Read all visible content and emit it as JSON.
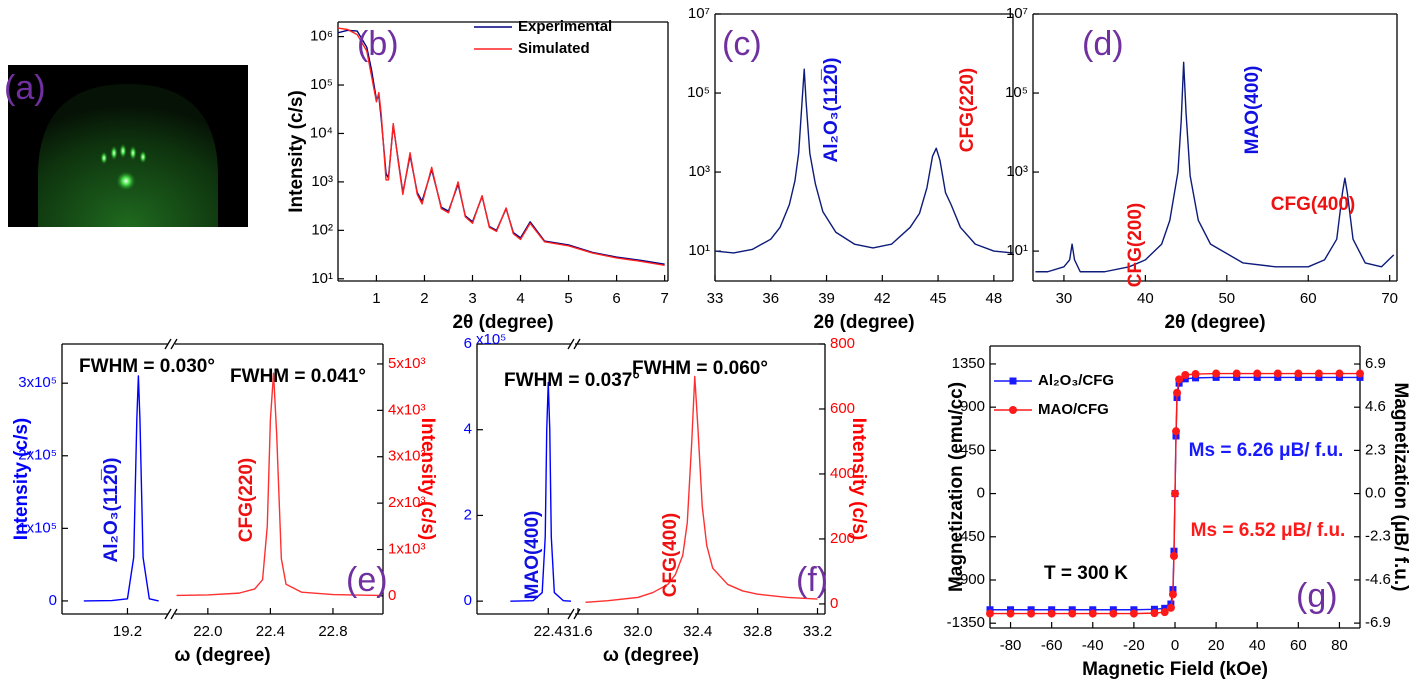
{
  "image_panel": {
    "label": "(a)"
  },
  "chart_data": [
    {
      "type": "line",
      "panel_label": "(b)",
      "xlabel": "2θ (degree)",
      "ylabel": "Intensity (c/s)",
      "ylog": true,
      "xlim": [
        0.2,
        7.07
      ],
      "xticks": [
        1,
        2,
        3,
        4,
        5,
        6,
        7
      ],
      "ylim": [
        9,
        2000000
      ],
      "yticks": [
        {
          "value": 10,
          "label": "10¹"
        },
        {
          "value": 100,
          "label": "10²"
        },
        {
          "value": 1000,
          "label": "10³"
        },
        {
          "value": 10000,
          "label": "10⁴"
        },
        {
          "value": 100000,
          "label": "10⁵"
        },
        {
          "value": 1000000,
          "label": "10⁶"
        }
      ],
      "legend": "upper right",
      "x": [
        0.2,
        0.4,
        0.6,
        0.8,
        0.9,
        1.0,
        1.05,
        1.1,
        1.2,
        1.25,
        1.35,
        1.45,
        1.55,
        1.7,
        1.85,
        1.95,
        2.15,
        2.35,
        2.5,
        2.7,
        2.85,
        3.0,
        3.2,
        3.35,
        3.5,
        3.7,
        3.85,
        4.0,
        4.2,
        4.5,
        5.0,
        5.5,
        6.0,
        6.5,
        7.0
      ],
      "series": [
        {
          "name": "Experimental",
          "color": "#000080",
          "values": [
            1200000,
            1350000,
            1300000,
            600000,
            200000,
            50000,
            60000,
            20000,
            1500,
            1200,
            15000,
            3000,
            600,
            3500,
            600,
            400,
            1800,
            300,
            250,
            900,
            200,
            150,
            500,
            120,
            100,
            280,
            90,
            70,
            150,
            60,
            50,
            35,
            28,
            24,
            20
          ]
        },
        {
          "name": "Simulated",
          "color": "#ff2020",
          "values": [
            1500000,
            1400000,
            1100000,
            500000,
            150000,
            45000,
            70000,
            25000,
            1100,
            1100,
            16000,
            2800,
            550,
            4000,
            550,
            350,
            2000,
            280,
            230,
            1000,
            190,
            140,
            520,
            115,
            95,
            290,
            85,
            65,
            140,
            58,
            48,
            34,
            27,
            23,
            19
          ]
        }
      ]
    },
    {
      "type": "line",
      "panel_label": "(c)",
      "xlabel": "2θ (degree)",
      "ylog": true,
      "xlim": [
        33,
        49.03
      ],
      "xticks": [
        33,
        36,
        39,
        42,
        45,
        48
      ],
      "ylim": [
        1.75,
        10000000
      ],
      "yticks": [
        {
          "value": 10,
          "label": "10¹"
        },
        {
          "value": 1000,
          "label": "10³"
        },
        {
          "value": 100000,
          "label": "10⁵"
        },
        {
          "value": 10000000,
          "label": "10⁷"
        }
      ],
      "x": [
        33,
        34,
        35,
        36,
        36.5,
        37,
        37.3,
        37.5,
        37.7,
        37.8,
        37.9,
        38.1,
        38.4,
        38.8,
        39.5,
        40.5,
        41.5,
        42.5,
        43.5,
        44,
        44.4,
        44.7,
        44.9,
        45.1,
        45.4,
        45.7,
        46.2,
        47,
        48,
        49
      ],
      "series": [
        {
          "color": "#0d1b7a",
          "values": [
            10,
            9,
            11,
            20,
            40,
            150,
            600,
            3000,
            80000,
            400000,
            60000,
            3000,
            500,
            100,
            30,
            15,
            12,
            15,
            40,
            90,
            400,
            2500,
            4000,
            2000,
            300,
            150,
            40,
            15,
            10,
            9
          ]
        }
      ],
      "annotations": [
        {
          "text": "Al₂O₃(112̅0)",
          "color": "#1010e0"
        },
        {
          "text": "CFG(220)",
          "color": "#ee1111"
        }
      ]
    },
    {
      "type": "line",
      "panel_label": "(d)",
      "xlabel": "2θ (degree)",
      "ylog": true,
      "xlim": [
        26.2,
        70.9
      ],
      "xticks": [
        30,
        40,
        50,
        60,
        70
      ],
      "ylim": [
        1.75,
        10000000
      ],
      "yticks": [
        {
          "value": 10,
          "label": "10¹"
        },
        {
          "value": 1000,
          "label": "10³"
        },
        {
          "value": 100000,
          "label": "10⁵"
        },
        {
          "value": 10000000,
          "label": "10⁷"
        }
      ],
      "x": [
        26.5,
        28,
        30,
        30.7,
        31,
        31.3,
        32,
        35,
        38,
        40,
        42,
        43,
        44,
        44.4,
        44.7,
        45,
        45.5,
        46.5,
        48,
        52,
        56,
        60,
        62,
        63.5,
        64.2,
        64.5,
        64.8,
        65.5,
        67,
        69,
        70.5
      ],
      "series": [
        {
          "color": "#0d1b7a",
          "values": [
            3,
            3,
            4,
            6,
            15,
            6,
            3,
            3,
            4,
            6,
            15,
            60,
            1000,
            20000,
            600000,
            30000,
            800,
            60,
            15,
            5,
            4,
            4,
            6,
            20,
            300,
            700,
            300,
            20,
            5,
            4,
            8
          ]
        }
      ],
      "annotations": [
        {
          "text": "CFG(200)",
          "color": "#ee1111"
        },
        {
          "text": "MAO(400)",
          "color": "#1010e0"
        },
        {
          "text": "CFG(400)",
          "color": "#ee1111"
        }
      ]
    },
    {
      "type": "broken_line",
      "panel_label": "(e)",
      "xlabel": "ω (degree)",
      "ylabel": "Intensity (c/s)",
      "y2label": "Intensity (c/s)",
      "ycolor": "#0000ff",
      "y2color": "#ff0000",
      "segments": [
        {
          "xlim": [
            18.78,
            19.46
          ],
          "xticks": [
            19.2
          ]
        },
        {
          "xlim": [
            21.79,
            23.12
          ],
          "xticks": [
            {
              "value": 22,
              "label": "22.0"
            },
            22.4,
            22.8
          ]
        }
      ],
      "ylim": [
        -18000,
        354000
      ],
      "yticks": [
        0,
        {
          "value": 100000,
          "label": "1x10⁵"
        },
        {
          "value": 200000,
          "label": "2x10⁵"
        },
        {
          "value": 300000,
          "label": "3x10⁵"
        }
      ],
      "y2lim": [
        -390,
        5430
      ],
      "y2ticks": [
        0,
        {
          "value": 1000,
          "label": "1x10³"
        },
        {
          "value": 2000,
          "label": "2x10³"
        },
        {
          "value": 3000,
          "label": "3x10³"
        },
        {
          "value": 4000,
          "label": "4x10³"
        },
        {
          "value": 5000,
          "label": "5x10³"
        }
      ],
      "series": [
        {
          "color": "#0000ff",
          "segment": 0,
          "x": [
            18.92,
            19.1,
            19.2,
            19.24,
            19.26,
            19.27,
            19.28,
            19.3,
            19.34,
            19.4
          ],
          "values": [
            0,
            500,
            3000,
            60000,
            250000,
            310000,
            250000,
            60000,
            3000,
            0
          ]
        },
        {
          "color": "#ff3030",
          "segment": 1,
          "axis": "y2",
          "x": [
            21.8,
            22.0,
            22.2,
            22.3,
            22.35,
            22.38,
            22.4,
            22.42,
            22.44,
            22.47,
            22.5,
            22.6,
            22.8,
            23.0,
            23.1
          ],
          "values": [
            10,
            20,
            60,
            150,
            350,
            1500,
            3800,
            4800,
            3500,
            800,
            250,
            80,
            30,
            15,
            10
          ]
        }
      ],
      "annotations": [
        {
          "text": "FWHM = 0.030°",
          "color": "#000000"
        },
        {
          "text": "FWHM = 0.041°",
          "color": "#000000"
        },
        {
          "text": "Al₂O₃(112̅0)",
          "color": "#1010e0"
        },
        {
          "text": "CFG(220)",
          "color": "#ee1111"
        }
      ]
    },
    {
      "type": "broken_line",
      "panel_label": "(f)",
      "xlabel": "ω (degree)",
      "y2label": "Intensity (c/s)",
      "ycolor": "#0000ff",
      "y2color": "#ff0000",
      "y_multiplier": "x10⁵",
      "segments": [
        {
          "xlim": [
            21.93,
            22.55
          ],
          "xticks": [
            22.4
          ]
        },
        {
          "xlim": [
            31.58,
            33.25
          ],
          "xticks": [
            31.6,
            {
              "value": 32,
              "label": "32.0"
            },
            32.4,
            32.8,
            33.2
          ]
        }
      ],
      "ylim": [
        -0.3,
        6
      ],
      "yticks": [
        0,
        2,
        4,
        6
      ],
      "y2lim": [
        -31,
        800
      ],
      "y2ticks": [
        0,
        200,
        400,
        600,
        800
      ],
      "series": [
        {
          "color": "#0000ff",
          "segment": 0,
          "x": [
            22.15,
            22.3,
            22.36,
            22.38,
            22.39,
            22.4,
            22.41,
            22.42,
            22.44,
            22.5,
            22.55
          ],
          "values": [
            0,
            0.01,
            0.2,
            1.5,
            4,
            5.1,
            4,
            1.5,
            0.2,
            0.01,
            0
          ]
        },
        {
          "color": "#ff3030",
          "segment": 1,
          "axis": "y2",
          "x": [
            31.65,
            31.8,
            32.0,
            32.1,
            32.2,
            32.25,
            32.3,
            32.33,
            32.36,
            32.38,
            32.4,
            32.43,
            32.46,
            32.5,
            32.6,
            32.7,
            32.8,
            33.0,
            33.2
          ],
          "values": [
            5,
            10,
            20,
            35,
            60,
            90,
            150,
            250,
            500,
            700,
            550,
            300,
            180,
            110,
            60,
            40,
            30,
            20,
            15
          ]
        }
      ],
      "annotations": [
        {
          "text": "FWHM = 0.037°",
          "color": "#000000"
        },
        {
          "text": "FWHM = 0.060°",
          "color": "#000000"
        },
        {
          "text": "MAO(400)",
          "color": "#1010e0"
        },
        {
          "text": "CFG(400)",
          "color": "#ee1111"
        }
      ]
    },
    {
      "type": "line",
      "panel_label": "(g)",
      "xlabel": "Magnetic Field (kOe)",
      "ylabel": "Magnetization (emu/cc)",
      "y2label": "Magnetization (μB/ f.u.)",
      "xlim": [
        -90,
        90
      ],
      "xticks": [
        -80,
        -60,
        -40,
        -20,
        0,
        20,
        40,
        60,
        80
      ],
      "ylim": [
        -1400,
        1537
      ],
      "yticks": [
        1350,
        900,
        450,
        0,
        -450,
        -900,
        -1350
      ],
      "y2lim": [
        -7.16,
        7.86
      ],
      "y2ticks": [
        6.9,
        4.6,
        2.3,
        {
          "value": 0,
          "label": "0.0"
        },
        -2.3,
        -4.6,
        -6.9
      ],
      "legend": "upper left",
      "x": [
        -90,
        -80,
        -70,
        -60,
        -50,
        -40,
        -30,
        -20,
        -10,
        -5,
        -2,
        -1,
        -0.5,
        0,
        0.5,
        1,
        2,
        5,
        10,
        20,
        30,
        40,
        50,
        60,
        70,
        80,
        90
      ],
      "series": [
        {
          "name": "Al₂O₃/CFG",
          "color": "#1a1aff",
          "marker": "square",
          "values": [
            -1210,
            -1210,
            -1210,
            -1210,
            -1210,
            -1210,
            -1210,
            -1210,
            -1205,
            -1195,
            -1150,
            -1000,
            -600,
            0,
            600,
            1000,
            1150,
            1195,
            1205,
            1210,
            1210,
            1210,
            1210,
            1210,
            1210,
            1210,
            1210
          ]
        },
        {
          "name": "MAO/CFG",
          "color": "#ff1a1a",
          "marker": "circle",
          "values": [
            -1250,
            -1250,
            -1250,
            -1250,
            -1250,
            -1250,
            -1250,
            -1250,
            -1245,
            -1235,
            -1190,
            -1050,
            -650,
            0,
            650,
            1050,
            1190,
            1235,
            1245,
            1250,
            1250,
            1250,
            1250,
            1250,
            1250,
            1250,
            1250
          ]
        }
      ],
      "annotations": [
        {
          "text": "T = 300 K",
          "color": "#000000"
        },
        {
          "text": "Ms = 6.26 μB/ f.u.",
          "color": "#1a1aff"
        },
        {
          "text": "Ms = 6.52 μB/ f.u.",
          "color": "#ff1a1a"
        }
      ]
    }
  ]
}
